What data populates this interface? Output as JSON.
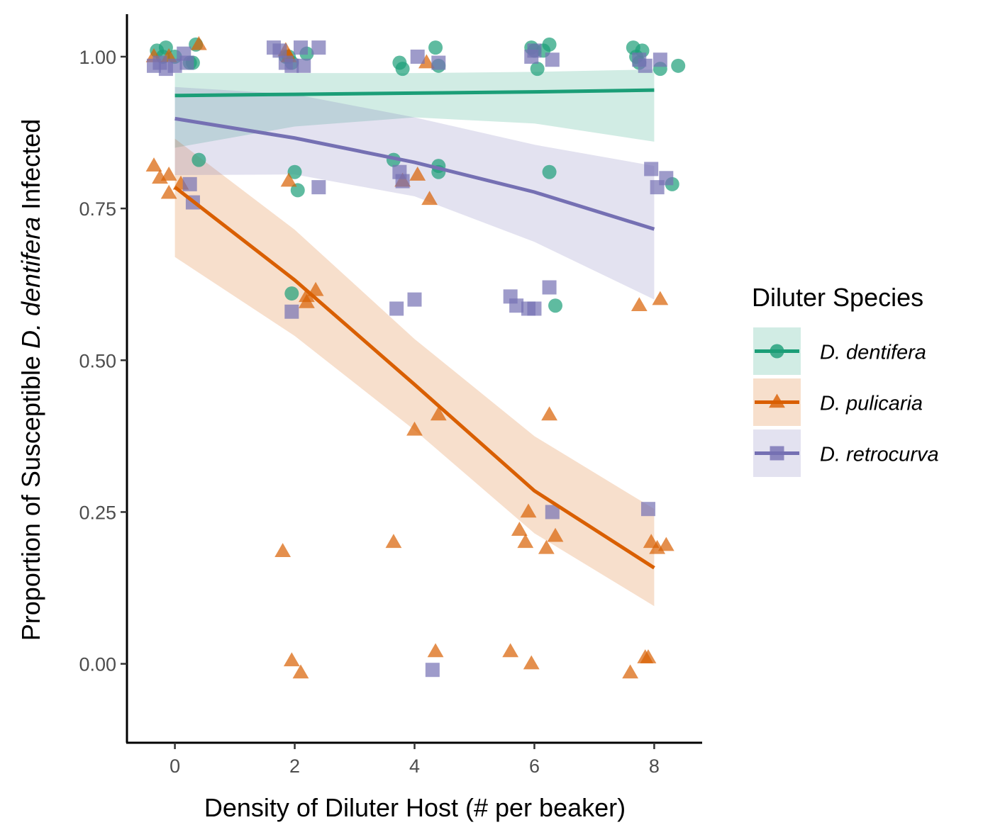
{
  "chart_data": {
    "type": "scatter",
    "title": "",
    "xlabel": "Density of Diluter Host (# per beaker)",
    "ylabel": {
      "prefix": "Proportion of Susceptible ",
      "italic": "D. dentifera",
      "suffix": " Infected"
    },
    "xlim": [
      -0.8,
      8.8
    ],
    "ylim": [
      -0.13,
      1.07
    ],
    "x_ticks": [
      {
        "value": 0,
        "label": "0"
      },
      {
        "value": 2,
        "label": "2"
      },
      {
        "value": 4,
        "label": "4"
      },
      {
        "value": 6,
        "label": "6"
      },
      {
        "value": 8,
        "label": "8"
      }
    ],
    "y_ticks": [
      {
        "value": 0,
        "label": "0.00"
      },
      {
        "value": 0.25,
        "label": "0.25"
      },
      {
        "value": 0.5,
        "label": "0.50"
      },
      {
        "value": 0.75,
        "label": "0.75"
      },
      {
        "value": 1.0,
        "label": "1.00"
      }
    ],
    "grid": false,
    "legend": {
      "title": "Diluter Species",
      "placement": "right"
    },
    "series": [
      {
        "name": "D. dentifera",
        "color": "#1b9e77",
        "shape": "circle",
        "points": [
          [
            -0.3,
            1.01
          ],
          [
            -0.2,
            1.0
          ],
          [
            -0.15,
            1.015
          ],
          [
            0.0,
            1.0
          ],
          [
            0.25,
            0.99
          ],
          [
            0.3,
            0.99
          ],
          [
            0.35,
            1.02
          ],
          [
            0.4,
            0.83
          ],
          [
            1.85,
            1.0
          ],
          [
            1.9,
            1.0
          ],
          [
            1.95,
            0.99
          ],
          [
            2.0,
            0.81
          ],
          [
            2.05,
            0.78
          ],
          [
            2.2,
            1.005
          ],
          [
            1.95,
            0.61
          ],
          [
            3.75,
            0.99
          ],
          [
            3.8,
            0.98
          ],
          [
            3.65,
            0.83
          ],
          [
            4.35,
            1.015
          ],
          [
            4.4,
            0.82
          ],
          [
            4.4,
            0.81
          ],
          [
            4.4,
            0.985
          ],
          [
            5.95,
            1.015
          ],
          [
            6.0,
            1.01
          ],
          [
            6.05,
            0.98
          ],
          [
            6.15,
            1.01
          ],
          [
            6.25,
            1.02
          ],
          [
            6.25,
            0.81
          ],
          [
            6.35,
            0.59
          ],
          [
            7.65,
            1.015
          ],
          [
            7.7,
            1.0
          ],
          [
            7.8,
            1.01
          ],
          [
            7.75,
            0.99
          ],
          [
            8.1,
            0.98
          ],
          [
            8.3,
            0.79
          ],
          [
            8.4,
            0.985
          ]
        ],
        "fit": [
          [
            0,
            0.936
          ],
          [
            2,
            0.938
          ],
          [
            4,
            0.94
          ],
          [
            6,
            0.942
          ],
          [
            8,
            0.945
          ]
        ],
        "ci_upper": [
          [
            0,
            0.973
          ],
          [
            2,
            0.973
          ],
          [
            4,
            0.973
          ],
          [
            6,
            0.975
          ],
          [
            8,
            0.979
          ]
        ],
        "ci_lower": [
          [
            0,
            0.85
          ],
          [
            2,
            0.885
          ],
          [
            4,
            0.9
          ],
          [
            6,
            0.89
          ],
          [
            8,
            0.86
          ]
        ]
      },
      {
        "name": "D. pulicaria",
        "color": "#d95f02",
        "shape": "triangle",
        "points": [
          [
            -0.35,
            1.0
          ],
          [
            -0.1,
            1.0
          ],
          [
            0.4,
            1.02
          ],
          [
            -0.35,
            0.82
          ],
          [
            -0.25,
            0.8
          ],
          [
            -0.1,
            0.805
          ],
          [
            -0.1,
            0.775
          ],
          [
            0.1,
            0.79
          ],
          [
            1.8,
            0.185
          ],
          [
            1.85,
            1.01
          ],
          [
            1.9,
            1.0
          ],
          [
            1.9,
            0.795
          ],
          [
            1.95,
            0.005
          ],
          [
            2.1,
            -0.015
          ],
          [
            2.2,
            0.595
          ],
          [
            2.2,
            0.605
          ],
          [
            2.35,
            0.615
          ],
          [
            3.65,
            0.2
          ],
          [
            3.8,
            0.795
          ],
          [
            4.0,
            0.385
          ],
          [
            4.05,
            0.805
          ],
          [
            4.2,
            0.99
          ],
          [
            4.25,
            0.765
          ],
          [
            4.35,
            0.02
          ],
          [
            4.4,
            0.41
          ],
          [
            5.6,
            0.02
          ],
          [
            5.75,
            0.22
          ],
          [
            5.85,
            0.2
          ],
          [
            5.9,
            0.25
          ],
          [
            5.95,
            0.0
          ],
          [
            6.2,
            0.19
          ],
          [
            6.25,
            0.41
          ],
          [
            6.35,
            0.21
          ],
          [
            7.6,
            -0.015
          ],
          [
            7.75,
            0.59
          ],
          [
            7.85,
            0.01
          ],
          [
            7.9,
            0.01
          ],
          [
            7.95,
            0.2
          ],
          [
            8.05,
            0.19
          ],
          [
            8.1,
            0.6
          ],
          [
            8.2,
            0.195
          ]
        ],
        "fit": [
          [
            0,
            0.785
          ],
          [
            2,
            0.632
          ],
          [
            4,
            0.46
          ],
          [
            6,
            0.285
          ],
          [
            8,
            0.158
          ]
        ],
        "ci_upper": [
          [
            0,
            0.865
          ],
          [
            2,
            0.715
          ],
          [
            4,
            0.535
          ],
          [
            6,
            0.375
          ],
          [
            8,
            0.255
          ]
        ],
        "ci_lower": [
          [
            0,
            0.67
          ],
          [
            2,
            0.54
          ],
          [
            4,
            0.385
          ],
          [
            6,
            0.215
          ],
          [
            8,
            0.095
          ]
        ]
      },
      {
        "name": "D. retrocurva",
        "color": "#7570b3",
        "shape": "square",
        "points": [
          [
            -0.35,
            0.985
          ],
          [
            -0.25,
            0.99
          ],
          [
            -0.15,
            0.98
          ],
          [
            0.0,
            0.985
          ],
          [
            0.15,
            1.005
          ],
          [
            0.2,
            0.99
          ],
          [
            0.25,
            0.79
          ],
          [
            0.3,
            0.76
          ],
          [
            1.65,
            1.015
          ],
          [
            1.75,
            1.01
          ],
          [
            1.85,
            0.99
          ],
          [
            1.95,
            0.985
          ],
          [
            2.1,
            1.015
          ],
          [
            2.15,
            0.985
          ],
          [
            2.4,
            1.015
          ],
          [
            2.4,
            0.785
          ],
          [
            1.95,
            0.58
          ],
          [
            3.7,
            0.585
          ],
          [
            3.75,
            0.81
          ],
          [
            3.8,
            0.795
          ],
          [
            4.0,
            0.6
          ],
          [
            4.05,
            1.0
          ],
          [
            4.4,
            0.99
          ],
          [
            4.3,
            -0.01
          ],
          [
            5.6,
            0.605
          ],
          [
            5.7,
            0.59
          ],
          [
            5.9,
            0.585
          ],
          [
            6.0,
            0.585
          ],
          [
            5.95,
            1.0
          ],
          [
            6.0,
            1.01
          ],
          [
            6.25,
            0.62
          ],
          [
            6.3,
            0.995
          ],
          [
            6.3,
            0.25
          ],
          [
            7.75,
            0.995
          ],
          [
            7.85,
            0.985
          ],
          [
            7.9,
            0.255
          ],
          [
            7.95,
            0.815
          ],
          [
            8.05,
            0.785
          ],
          [
            8.1,
            0.995
          ],
          [
            8.2,
            0.8
          ]
        ],
        "fit": [
          [
            0,
            0.898
          ],
          [
            2,
            0.866
          ],
          [
            4,
            0.826
          ],
          [
            6,
            0.777
          ],
          [
            8,
            0.716
          ]
        ],
        "ci_upper": [
          [
            0,
            0.95
          ],
          [
            2,
            0.938
          ],
          [
            4,
            0.9
          ],
          [
            6,
            0.855
          ],
          [
            8,
            0.82
          ]
        ],
        "ci_lower": [
          [
            0,
            0.805
          ],
          [
            2,
            0.806
          ],
          [
            4,
            0.77
          ],
          [
            6,
            0.695
          ],
          [
            8,
            0.6
          ]
        ]
      }
    ]
  }
}
